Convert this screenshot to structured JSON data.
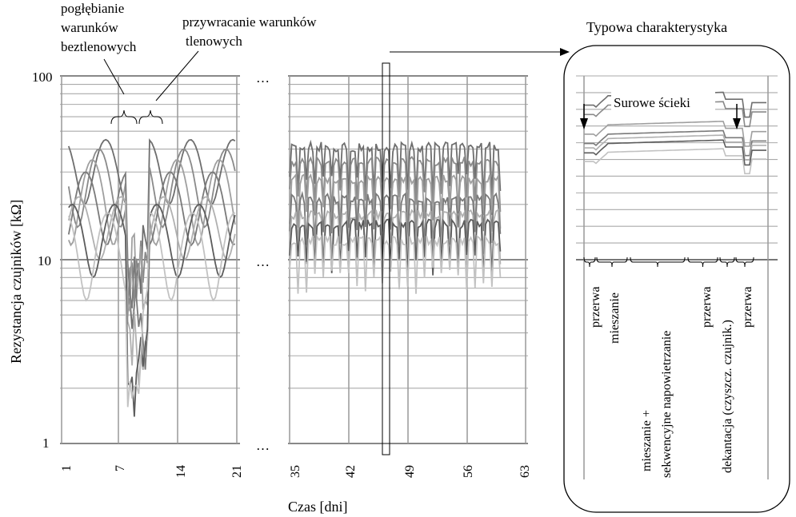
{
  "chart_data": {
    "type": "line",
    "title": "",
    "xlabel": "Czas [dni]",
    "ylabel": "Rezystancja czujników [kΩ]",
    "y_scale": "log",
    "ylim": [
      1,
      100
    ],
    "y_ticks": [
      "1",
      "10",
      "100"
    ],
    "x_ticks_left": [
      "1",
      "7",
      "14",
      "21"
    ],
    "x_ticks_right": [
      "35",
      "42",
      "49",
      "56",
      "63"
    ],
    "x_break_marks": [
      "…",
      "…",
      "…"
    ],
    "left_panel_xlim": [
      1,
      21
    ],
    "right_panel_xlim": [
      35,
      63
    ],
    "highlighted_day": 46,
    "series": [
      {
        "values_days_1_21_min": 20,
        "values_days_1_21_max": 45,
        "values_days_35_60_level": 42
      },
      {
        "values_days_1_21_min": 15,
        "values_days_1_21_max": 40,
        "values_days_35_60_level": 35
      },
      {
        "values_days_1_21_min": 12,
        "values_days_1_21_max": 35,
        "values_days_35_60_level": 28
      },
      {
        "values_days_1_21_min": 12,
        "values_days_1_21_max": 30,
        "values_days_35_60_level": 22
      },
      {
        "values_days_1_21_min": 10,
        "values_days_1_21_max": 22,
        "values_days_35_60_level": 18
      },
      {
        "values_days_1_21_min": 8,
        "values_days_1_21_max": 20,
        "values_days_35_60_level": 16
      },
      {
        "values_days_1_21_min": 6,
        "values_days_1_21_max": 18,
        "values_days_35_60_level": 13
      }
    ],
    "annotations": {
      "anaerobic": "pogłębianie\nwarunków\nbeztlenowych",
      "aerobic": "przywracanie warunków\ntlenowych"
    },
    "inset": {
      "title": "Typowa charakterystyka",
      "raw_label": "Surowe ścieki",
      "phases": [
        "przerwa",
        "mieszanie",
        "mieszanie + sekwencyjne napowietrzanie",
        "przerwa",
        "dekantacja (czyszcz. czujnik.)",
        "przerwa"
      ],
      "series_levels": [
        50,
        40,
        25,
        20,
        18,
        16,
        13
      ]
    }
  }
}
